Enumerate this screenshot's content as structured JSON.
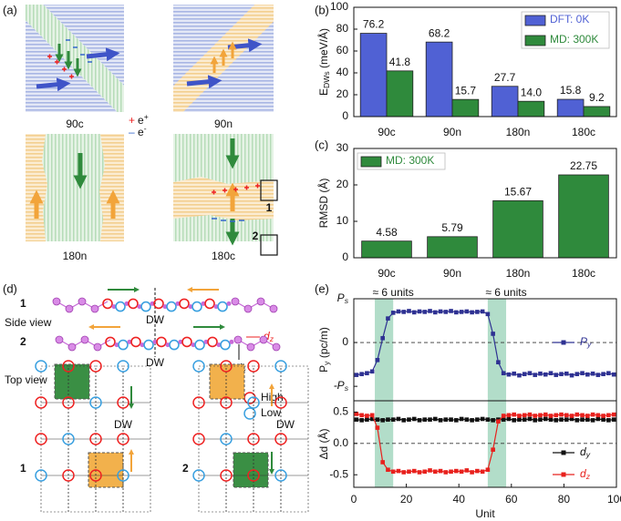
{
  "panel_labels": [
    "(a)",
    "(b)",
    "(c)",
    "(d)",
    "(e)"
  ],
  "panel_a": {
    "images": [
      "90c",
      "90n",
      "180n",
      "180c"
    ],
    "charges": [
      {
        "sign": "+",
        "label": "e+"
      },
      {
        "sign": "–",
        "label": "e-"
      }
    ],
    "boxes": [
      "1",
      "2"
    ]
  },
  "panel_d": {
    "side_view": "Side view",
    "top_view": "Top view",
    "rows": [
      "1",
      "2"
    ],
    "top_rows": [
      "1",
      "2"
    ],
    "wall": "DW",
    "dz": "dz",
    "dy": "dy",
    "legend": [
      "High",
      "Low"
    ]
  },
  "chart_data": [
    {
      "type": "bar",
      "ylabel": "EDWs (meV/Å)",
      "categories": [
        "90c",
        "90n",
        "180n",
        "180c"
      ],
      "series": [
        {
          "name": "DFT: 0K",
          "color": "#5061d4",
          "values": [
            76.2,
            68.2,
            27.7,
            15.8
          ]
        },
        {
          "name": "MD: 300K",
          "color": "#2f8a3c",
          "values": [
            41.8,
            15.7,
            14.0,
            9.2
          ],
          "value_labels": [
            "41.8",
            "15.7",
            "14.0",
            "9.2"
          ]
        }
      ],
      "ylim": [
        0,
        100
      ],
      "yticks": [
        0,
        20,
        40,
        60,
        80,
        100
      ],
      "legend": "upper right"
    },
    {
      "type": "bar",
      "ylabel": "RMSD (Å)",
      "categories": [
        "90c",
        "90n",
        "180n",
        "180c"
      ],
      "series": [
        {
          "name": "MD: 300K",
          "color": "#2f8a3c",
          "values": [
            4.58,
            5.79,
            15.67,
            22.75
          ]
        }
      ],
      "ylim": [
        0,
        30
      ],
      "yticks": [
        0,
        10,
        20,
        30
      ],
      "legend": "upper left"
    },
    {
      "type": "line",
      "ylabel": "Py (pc/m)",
      "x": [
        1,
        3,
        5,
        7,
        9,
        11,
        13,
        15,
        17,
        19,
        21,
        23,
        25,
        27,
        29,
        31,
        33,
        35,
        37,
        39,
        41,
        43,
        45,
        47,
        49,
        51,
        53,
        55,
        57,
        59,
        61,
        63,
        65,
        67,
        69,
        71,
        73,
        75,
        77,
        79,
        81,
        83,
        85,
        87,
        89,
        91,
        93,
        95,
        97,
        99
      ],
      "series": [
        {
          "name": "Py",
          "color": "#2e3192",
          "values": [
            -0.74,
            -0.72,
            -0.7,
            -0.66,
            -0.4,
            0.1,
            0.55,
            0.68,
            0.71,
            0.7,
            0.72,
            0.69,
            0.71,
            0.7,
            0.72,
            0.69,
            0.71,
            0.7,
            0.72,
            0.69,
            0.7,
            0.71,
            0.69,
            0.7,
            0.71,
            0.65,
            0.2,
            -0.45,
            -0.7,
            -0.73,
            -0.71,
            -0.75,
            -0.72,
            -0.7,
            -0.74,
            -0.71,
            -0.73,
            -0.7,
            -0.74,
            -0.72,
            -0.71,
            -0.75,
            -0.72,
            -0.7,
            -0.73,
            -0.71,
            -0.74,
            -0.72,
            -0.7,
            -0.73
          ]
        }
      ],
      "xlim": [
        0,
        100
      ],
      "ylim": [
        -1.33,
        1.0
      ],
      "yticks": [
        {
          "value": 1,
          "label": "Ps"
        },
        0,
        {
          "value": -1,
          "label": "-Ps"
        }
      ],
      "reference_line": 0,
      "shaded": [
        {
          "x": [
            8,
            15
          ],
          "label": "≈ 6 units"
        },
        {
          "x": [
            51,
            58
          ],
          "label": "≈ 6 units"
        }
      ],
      "legend": "center right"
    },
    {
      "type": "line",
      "ylabel": "Δd (Å)",
      "xlabel": "Unit",
      "x": [
        1,
        3,
        5,
        7,
        9,
        11,
        13,
        15,
        17,
        19,
        21,
        23,
        25,
        27,
        29,
        31,
        33,
        35,
        37,
        39,
        41,
        43,
        45,
        47,
        49,
        51,
        53,
        55,
        57,
        59,
        61,
        63,
        65,
        67,
        69,
        71,
        73,
        75,
        77,
        79,
        81,
        83,
        85,
        87,
        89,
        91,
        93,
        95,
        97,
        99
      ],
      "series": [
        {
          "name": "dy",
          "color": "#111111",
          "values": [
            0.38,
            0.37,
            0.38,
            0.39,
            0.38,
            0.37,
            0.38,
            0.38,
            0.39,
            0.37,
            0.38,
            0.39,
            0.37,
            0.38,
            0.38,
            0.39,
            0.37,
            0.38,
            0.38,
            0.37,
            0.39,
            0.38,
            0.37,
            0.38,
            0.39,
            0.38,
            0.37,
            0.38,
            0.38,
            0.39,
            0.37,
            0.38,
            0.38,
            0.39,
            0.37,
            0.38,
            0.39,
            0.38,
            0.37,
            0.38,
            0.38,
            0.39,
            0.37,
            0.38,
            0.38,
            0.37,
            0.39,
            0.38,
            0.37,
            0.38
          ]
        },
        {
          "name": "dz",
          "color": "#e8211d",
          "values": [
            0.47,
            0.45,
            0.44,
            0.45,
            0.25,
            -0.3,
            -0.42,
            -0.45,
            -0.44,
            -0.46,
            -0.45,
            -0.44,
            -0.46,
            -0.45,
            -0.43,
            -0.45,
            -0.44,
            -0.46,
            -0.45,
            -0.44,
            -0.45,
            -0.43,
            -0.46,
            -0.44,
            -0.45,
            -0.42,
            -0.1,
            0.35,
            0.44,
            0.45,
            0.46,
            0.44,
            0.45,
            0.46,
            0.44,
            0.45,
            0.46,
            0.44,
            0.45,
            0.46,
            0.45,
            0.44,
            0.46,
            0.45,
            0.44,
            0.46,
            0.45,
            0.44,
            0.45,
            0.46
          ]
        }
      ],
      "xlim": [
        0,
        100
      ],
      "ylim": [
        -0.7,
        0.68
      ],
      "xticks": [
        0,
        20,
        40,
        60,
        80,
        100
      ],
      "yticks": [
        0.5,
        {
          "value": 0,
          "label": "0.0"
        },
        -0.5
      ],
      "reference_line": 0,
      "legend": "lower right"
    }
  ]
}
